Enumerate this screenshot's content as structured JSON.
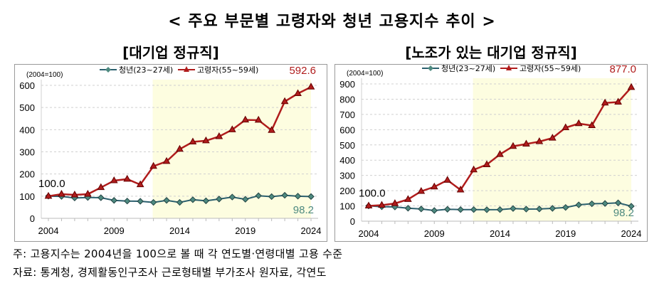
{
  "title": "< 주요 부문별 고령자와 청년 고용지수 추이 >",
  "notes": {
    "note": "주: 고용지수는 2004년을 100으로 볼 때 각 연도별·연령대별 고용 수준",
    "source": "자료: 통계청, 경제활동인구조사 근로형태별 부가조사 원자료, 각연도"
  },
  "colors": {
    "youth": "#2b5f6e",
    "youth_marker": "#4e8a80",
    "elderly": "#b01c1c",
    "shade": "#fdfde0"
  },
  "chart_data": [
    {
      "type": "line",
      "title": "[대기업 정규직]",
      "unit_label": "(2004=100)",
      "x": [
        2004,
        2005,
        2006,
        2007,
        2008,
        2009,
        2010,
        2011,
        2012,
        2013,
        2014,
        2015,
        2016,
        2017,
        2018,
        2019,
        2020,
        2021,
        2022,
        2023,
        2024
      ],
      "xticks": [
        "2004",
        "2009",
        "2014",
        "2019",
        "2024"
      ],
      "ylim": [
        0,
        600
      ],
      "yticks": [
        "0",
        "100",
        "200",
        "300",
        "400",
        "500",
        "600"
      ],
      "shaded_from": 2012,
      "grid": true,
      "legend": "top",
      "series": [
        {
          "name": "청년(23~27세)",
          "marker": "diamond",
          "values": [
            100,
            99,
            92,
            94,
            93,
            81,
            78,
            77,
            72,
            81,
            72,
            84,
            79,
            87,
            96,
            86,
            102,
            98,
            104,
            100,
            98.2
          ]
        },
        {
          "name": "고령자(55~59세)",
          "marker": "triangle",
          "values": [
            100,
            109,
            106,
            109,
            139,
            170,
            177,
            152,
            235,
            257,
            312,
            345,
            350,
            369,
            400,
            444,
            443,
            397,
            527,
            563,
            592.6
          ]
        }
      ],
      "annotations": {
        "start": "100.0",
        "youth_end": "98.2",
        "elderly_end": "592.6"
      }
    },
    {
      "type": "line",
      "title": "[노조가 있는 대기업 정규직]",
      "unit_label": "(2004=100)",
      "x": [
        2004,
        2005,
        2006,
        2007,
        2008,
        2009,
        2010,
        2011,
        2012,
        2013,
        2014,
        2015,
        2016,
        2017,
        2018,
        2019,
        2020,
        2021,
        2022,
        2023,
        2024
      ],
      "xticks": [
        "2004",
        "2009",
        "2014",
        "2019",
        "2024"
      ],
      "ylim": [
        0,
        900
      ],
      "yticks": [
        "0",
        "100",
        "200",
        "300",
        "400",
        "500",
        "600",
        "700",
        "800",
        "900"
      ],
      "shaded_from": 2012,
      "grid": true,
      "legend": "top",
      "series": [
        {
          "name": "청년(23~27세)",
          "marker": "diamond",
          "values": [
            100,
            95,
            93,
            85,
            80,
            70,
            78,
            76,
            76,
            75,
            76,
            83,
            79,
            80,
            84,
            90,
            107,
            114,
            116,
            120,
            98.2
          ]
        },
        {
          "name": "고령자(55~59세)",
          "marker": "triangle",
          "values": [
            100,
            105,
            116,
            143,
            196,
            225,
            269,
            205,
            337,
            371,
            438,
            491,
            506,
            522,
            545,
            613,
            640,
            627,
            775,
            781,
            877.0
          ]
        }
      ],
      "annotations": {
        "start": "100.0",
        "youth_end": "98.2",
        "elderly_end": "877.0"
      }
    }
  ]
}
